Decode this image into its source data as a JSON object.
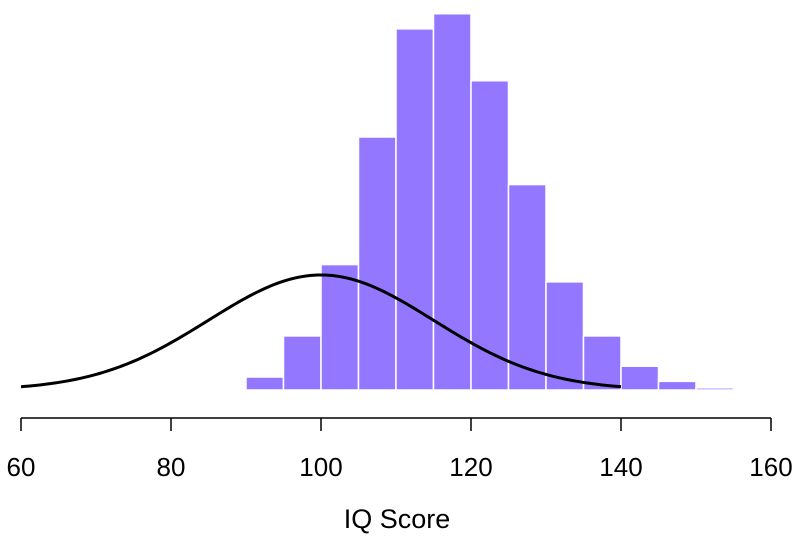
{
  "chart_data": {
    "type": "bar",
    "xlabel": "IQ Score",
    "ylabel": "",
    "title": "",
    "xlim": [
      60,
      160
    ],
    "xticks": [
      60,
      80,
      100,
      120,
      140,
      160
    ],
    "xtick_labels": [
      "60",
      "80",
      "100",
      "120",
      "140",
      "160"
    ],
    "bins": [
      {
        "start": 90,
        "end": 95,
        "value": 0.003
      },
      {
        "start": 95,
        "end": 100,
        "value": 0.0125
      },
      {
        "start": 100,
        "end": 105,
        "value": 0.029
      },
      {
        "start": 105,
        "end": 110,
        "value": 0.0585
      },
      {
        "start": 110,
        "end": 115,
        "value": 0.0835
      },
      {
        "start": 115,
        "end": 120,
        "value": 0.087
      },
      {
        "start": 120,
        "end": 125,
        "value": 0.0715
      },
      {
        "start": 125,
        "end": 130,
        "value": 0.0475
      },
      {
        "start": 130,
        "end": 135,
        "value": 0.025
      },
      {
        "start": 135,
        "end": 140,
        "value": 0.0125
      },
      {
        "start": 140,
        "end": 145,
        "value": 0.0055
      },
      {
        "start": 145,
        "end": 150,
        "value": 0.002
      },
      {
        "start": 150,
        "end": 155,
        "value": 0.0005
      }
    ],
    "curve": {
      "type": "normal_density",
      "mean": 100,
      "sd": 15,
      "x_range": [
        60,
        140
      ]
    },
    "colors": {
      "bars": "#9378FF",
      "bar_edge": "#ffffff",
      "curve": "#000000",
      "axis": "#000000"
    },
    "grid": false,
    "legend": "none"
  }
}
